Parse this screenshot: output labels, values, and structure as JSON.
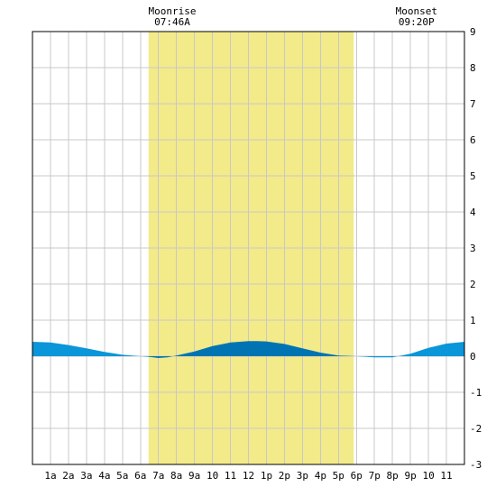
{
  "chart_data": {
    "type": "area",
    "x_unit": "hour of day",
    "x_tick_labels": [
      "1a",
      "2a",
      "3a",
      "4a",
      "5a",
      "6a",
      "7a",
      "8a",
      "9a",
      "10",
      "11",
      "12",
      "1p",
      "2p",
      "3p",
      "4p",
      "5p",
      "6p",
      "7p",
      "8p",
      "9p",
      "10",
      "11"
    ],
    "y_ticks": [
      9,
      8,
      7,
      6,
      5,
      4,
      3,
      2,
      1,
      0,
      -1,
      -2,
      -3
    ],
    "ylim": [
      -3,
      9
    ],
    "xlim": [
      0,
      24
    ],
    "daylight_band": {
      "start": 6.45,
      "end": 17.85,
      "color": "#f3ea8a"
    },
    "events": [
      {
        "label": "Moonrise",
        "time": "07:46A"
      },
      {
        "label": "Moonset",
        "time": "09:20P"
      }
    ],
    "colors": {
      "water_light": "#0a96d8",
      "water_dark": "#0074b2",
      "grid": "#c8c8c8",
      "frame": "#000000"
    },
    "series": [
      {
        "x": [
          0,
          1,
          2,
          3,
          4,
          5,
          6,
          6.5,
          7,
          7.5,
          8,
          9,
          10,
          11,
          12,
          12.5,
          13,
          14,
          15,
          16,
          17,
          17.5,
          18,
          19,
          20,
          21,
          22,
          23,
          24
        ],
        "y": [
          0.4,
          0.38,
          0.31,
          0.22,
          0.12,
          0.04,
          0.0,
          -0.02,
          -0.05,
          -0.03,
          0.02,
          0.13,
          0.28,
          0.38,
          0.42,
          0.42,
          0.41,
          0.34,
          0.22,
          0.1,
          0.02,
          0.01,
          0.0,
          -0.03,
          -0.03,
          0.07,
          0.23,
          0.35,
          0.4
        ]
      }
    ]
  }
}
